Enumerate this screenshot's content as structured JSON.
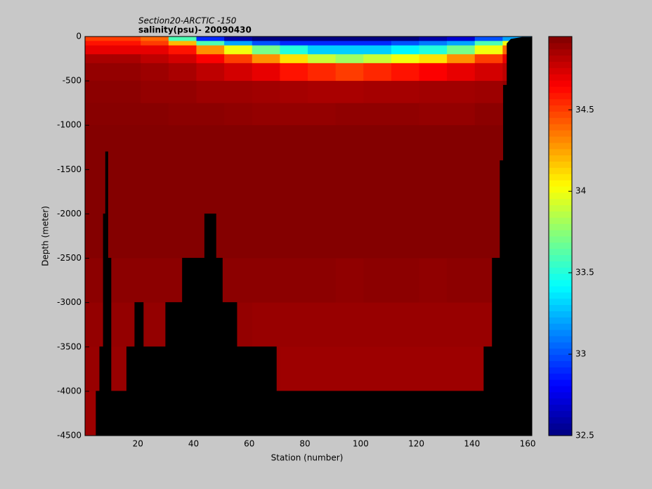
{
  "chart_data": {
    "type": "heatmap",
    "title": "Section20-ARCTIC  -150",
    "subtitle": "salinity(psu)- 20090430",
    "x_label": "Station (number)",
    "y_label": "Depth (meter)",
    "x": [
      1,
      11,
      21,
      31,
      41,
      51,
      61,
      71,
      81,
      91,
      101,
      111,
      121,
      131,
      141,
      151,
      161.5
    ],
    "depth": [
      0,
      -50,
      -100,
      -200,
      -300,
      -500,
      -750,
      -1000,
      -2500,
      -3000,
      -3500,
      -4000,
      -4500
    ],
    "values": [
      [
        34.5,
        34.5,
        34.4,
        33.6,
        32.9,
        32.6,
        32.5,
        32.5,
        32.5,
        32.5,
        32.5,
        32.5,
        32.6,
        32.7,
        33.0,
        33.2
      ],
      [
        34.6,
        34.6,
        34.5,
        34.2,
        33.6,
        33.2,
        33.0,
        32.9,
        32.9,
        32.9,
        32.9,
        33.0,
        33.1,
        33.2,
        33.6,
        34.0
      ],
      [
        34.7,
        34.7,
        34.7,
        34.6,
        34.3,
        34.0,
        33.7,
        33.5,
        33.3,
        33.3,
        33.3,
        33.4,
        33.5,
        33.7,
        34.0,
        34.4
      ],
      [
        34.85,
        34.85,
        34.8,
        34.75,
        34.65,
        34.5,
        34.3,
        34.1,
        33.9,
        33.8,
        33.9,
        34.0,
        34.1,
        34.3,
        34.5,
        34.7
      ],
      [
        34.9,
        34.9,
        34.88,
        34.85,
        34.8,
        34.75,
        34.7,
        34.6,
        34.55,
        34.5,
        34.55,
        34.6,
        34.65,
        34.7,
        34.75,
        34.8
      ],
      [
        34.92,
        34.92,
        34.9,
        34.9,
        34.88,
        34.88,
        34.87,
        34.86,
        34.85,
        34.85,
        34.86,
        34.86,
        34.87,
        34.87,
        34.88,
        34.9
      ],
      [
        34.93,
        34.93,
        34.93,
        34.92,
        34.92,
        34.91,
        34.9,
        34.9,
        34.9,
        34.91,
        34.91,
        34.91,
        34.9,
        34.9,
        34.92,
        34.93
      ],
      [
        34.94,
        34.94,
        34.94,
        34.94,
        34.94,
        34.94,
        34.94,
        34.94,
        34.94,
        34.94,
        34.94,
        34.94,
        34.94,
        34.94,
        34.94,
        34.94
      ],
      [
        34.92,
        34.92,
        34.92,
        34.92,
        34.92,
        34.92,
        34.92,
        34.92,
        34.92,
        34.91,
        34.92,
        34.92,
        34.91,
        34.92,
        34.92,
        34.92
      ],
      [
        34.9,
        34.9,
        34.9,
        34.9,
        34.9,
        34.9,
        34.89,
        34.89,
        34.89,
        34.89,
        34.89,
        34.89,
        34.89,
        34.89,
        34.89,
        34.9
      ],
      [
        34.89,
        34.89,
        34.89,
        34.89,
        34.89,
        34.89,
        34.89,
        34.88,
        34.88,
        34.88,
        34.88,
        34.88,
        34.88,
        34.88,
        34.88,
        34.89
      ],
      [
        34.88,
        34.88,
        34.88,
        34.88,
        34.88,
        34.88,
        34.88,
        34.88,
        34.88,
        34.88,
        34.88,
        34.88,
        34.88,
        34.88,
        34.88,
        34.88
      ]
    ],
    "bathymetry": {
      "x": [
        5,
        5,
        6.3,
        6.3,
        7.6,
        7.6,
        8.4,
        8.4,
        9.2,
        9.2,
        10.3,
        10.3,
        16,
        16,
        18.9,
        18.9,
        21.9,
        21.9,
        30,
        30,
        36,
        36,
        44,
        44,
        48,
        48,
        50.3,
        50.3,
        55.5,
        55.5,
        61.3,
        61.3,
        69.7,
        69.7,
        144.3,
        144.3,
        147.3,
        147.3,
        150.1,
        150.1,
        151.3,
        151.3,
        152.6,
        152.6,
        154,
        158,
        161.5
      ],
      "y": [
        -4500,
        -4000,
        -4000,
        -3500,
        -3500,
        -2000,
        -2000,
        -1300,
        -1300,
        -2500,
        -2500,
        -4000,
        -4000,
        -3500,
        -3500,
        -3000,
        -3000,
        -3500,
        -3500,
        -3000,
        -3000,
        -2500,
        -2500,
        -2000,
        -2000,
        -2500,
        -2500,
        -3000,
        -3000,
        -3500,
        -3500,
        -3500,
        -3500,
        -4000,
        -4000,
        -3500,
        -3500,
        -2500,
        -2500,
        -1400,
        -1400,
        -550,
        -550,
        -80,
        -30,
        -10,
        -10
      ]
    },
    "bathymetry_color": "#000000",
    "xlim": [
      1,
      161.5
    ],
    "xticks": [
      20,
      40,
      60,
      80,
      100,
      120,
      140,
      160
    ],
    "ylim": [
      -4500,
      0
    ],
    "yticks": [
      0,
      -500,
      -1000,
      -1500,
      -2000,
      -2500,
      -3000,
      -3500,
      -4000,
      -4500
    ],
    "clim": [
      32.5,
      34.95
    ],
    "cticks": [
      32.5,
      33,
      33.5,
      34,
      34.5
    ],
    "colormap": "jet"
  }
}
